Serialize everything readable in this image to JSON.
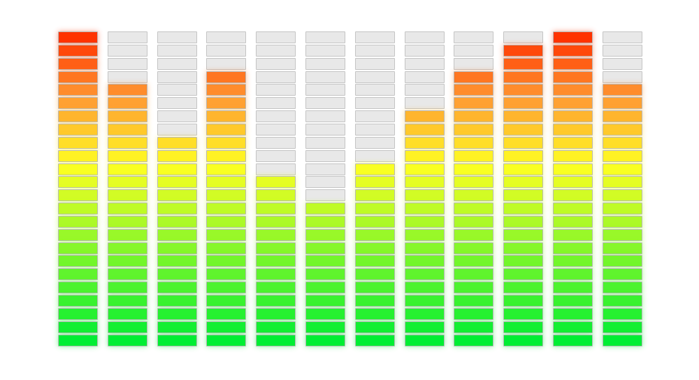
{
  "equalizer": {
    "segments_per_column": 24,
    "levels": [
      24,
      20,
      16,
      21,
      13,
      11,
      14,
      18,
      21,
      23,
      24,
      20
    ],
    "colors": {
      "bottom": "#00ee33",
      "middle": "#ffff22",
      "upper": "#ff9933",
      "top": "#ff3300",
      "off": "#e8e8e8"
    }
  }
}
